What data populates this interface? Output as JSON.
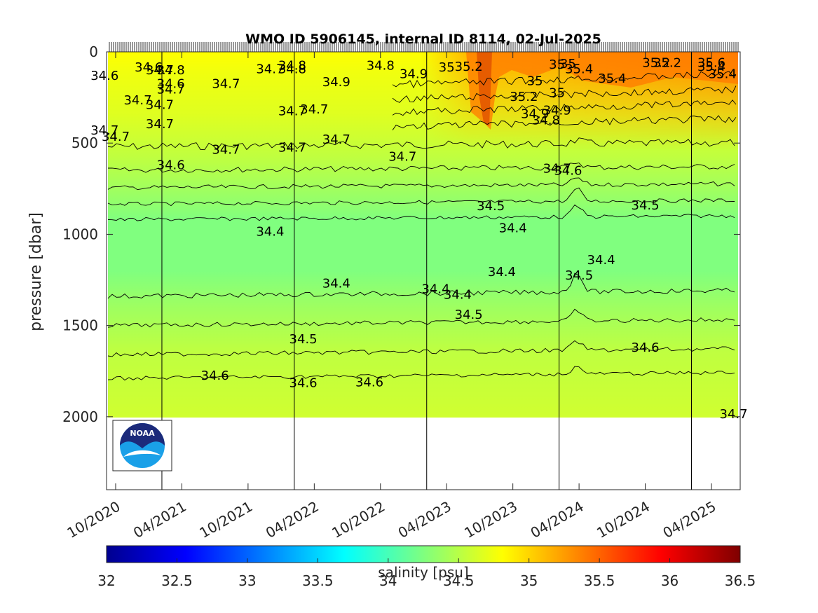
{
  "chart_data": {
    "type": "heatmap",
    "title": "WMO ID 5906145, internal ID 8114, 02-Jul-2025",
    "ylabel": "pressure [dbar]",
    "colorbar_label": "salinity [psu]",
    "x_ticks": [
      "10/2020",
      "04/2021",
      "10/2021",
      "04/2022",
      "10/2022",
      "04/2023",
      "10/2023",
      "04/2024",
      "10/2024",
      "04/2025"
    ],
    "y_ticks": [
      0,
      500,
      1000,
      1500,
      2000
    ],
    "ylim": [
      2400,
      0
    ],
    "y_reversed": true,
    "color_range": [
      32,
      36.5
    ],
    "colorbar_ticks": [
      "32",
      "32.5",
      "33",
      "33.5",
      "34",
      "34.5",
      "35",
      "35.5",
      "36",
      "36.5"
    ],
    "colormap": "jet",
    "contour_levels": [
      34.4,
      34.5,
      34.6,
      34.7,
      34.8,
      34.9,
      35,
      35.2,
      35.4,
      35.6
    ],
    "contour_labels": [
      {
        "text": "34.6",
        "x": "09/2020",
        "y": 130
      },
      {
        "text": "34.6",
        "x": "01/2021",
        "y": 85
      },
      {
        "text": "34.7",
        "x": "02/2021",
        "y": 100
      },
      {
        "text": "34.8",
        "x": "03/2021",
        "y": 100
      },
      {
        "text": "34.6",
        "x": "03/2021",
        "y": 175
      },
      {
        "text": "34.7",
        "x": "03/2021",
        "y": 205
      },
      {
        "text": "34.7",
        "x": "12/2020",
        "y": 265
      },
      {
        "text": "34.7",
        "x": "02/2021",
        "y": 290
      },
      {
        "text": "34.7",
        "x": "09/2020",
        "y": 430
      },
      {
        "text": "34.7",
        "x": "10/2020",
        "y": 465
      },
      {
        "text": "34.7",
        "x": "02/2021",
        "y": 395
      },
      {
        "text": "34.6",
        "x": "03/2021",
        "y": 620
      },
      {
        "text": "34.7",
        "x": "08/2021",
        "y": 175
      },
      {
        "text": "34.7",
        "x": "12/2021",
        "y": 95
      },
      {
        "text": "34.8",
        "x": "02/2022",
        "y": 95
      },
      {
        "text": "34.8",
        "x": "02/2022",
        "y": 75
      },
      {
        "text": "34.9",
        "x": "06/2022",
        "y": 165
      },
      {
        "text": "34.7",
        "x": "08/2021",
        "y": 535
      },
      {
        "text": "34.7",
        "x": "02/2022",
        "y": 525
      },
      {
        "text": "34.7",
        "x": "02/2022",
        "y": 325
      },
      {
        "text": "34.7",
        "x": "04/2022",
        "y": 315
      },
      {
        "text": "34.7",
        "x": "06/2022",
        "y": 480
      },
      {
        "text": "34.4",
        "x": "12/2021",
        "y": 985
      },
      {
        "text": "34.8",
        "x": "10/2022",
        "y": 75
      },
      {
        "text": "34.9",
        "x": "01/2023",
        "y": 120
      },
      {
        "text": "35",
        "x": "04/2023",
        "y": 85
      },
      {
        "text": "35.2",
        "x": "06/2023",
        "y": 80
      },
      {
        "text": "35.2",
        "x": "11/2023",
        "y": 245
      },
      {
        "text": "34.9",
        "x": "12/2023",
        "y": 340
      },
      {
        "text": "34.8",
        "x": "01/2024",
        "y": 375
      },
      {
        "text": "35",
        "x": "12/2023",
        "y": 160
      },
      {
        "text": "35",
        "x": "02/2024",
        "y": 70
      },
      {
        "text": "35",
        "x": "03/2024",
        "y": 65
      },
      {
        "text": "35.4",
        "x": "04/2024",
        "y": 95
      },
      {
        "text": "35",
        "x": "02/2024",
        "y": 225
      },
      {
        "text": "34.9",
        "x": "02/2024",
        "y": 320
      },
      {
        "text": "35.4",
        "x": "07/2024",
        "y": 145
      },
      {
        "text": "35.2",
        "x": "11/2024",
        "y": 60
      },
      {
        "text": "35.2",
        "x": "12/2024",
        "y": 60
      },
      {
        "text": "35.6",
        "x": "04/2025",
        "y": 60
      },
      {
        "text": "35.4",
        "x": "04/2025",
        "y": 80
      },
      {
        "text": "35.4",
        "x": "05/2025",
        "y": 120
      },
      {
        "text": "34.7",
        "x": "12/2022",
        "y": 575
      },
      {
        "text": "34.7",
        "x": "02/2024",
        "y": 640
      },
      {
        "text": "34.6",
        "x": "03/2024",
        "y": 650
      },
      {
        "text": "34.5",
        "x": "08/2023",
        "y": 845
      },
      {
        "text": "34.5",
        "x": "10/2024",
        "y": 840
      },
      {
        "text": "34.4",
        "x": "10/2023",
        "y": 965
      },
      {
        "text": "34.4",
        "x": "06/2022",
        "y": 1270
      },
      {
        "text": "34.4",
        "x": "03/2023",
        "y": 1300
      },
      {
        "text": "34.4",
        "x": "05/2023",
        "y": 1330
      },
      {
        "text": "34.4",
        "x": "09/2023",
        "y": 1205
      },
      {
        "text": "34.4",
        "x": "06/2024",
        "y": 1140
      },
      {
        "text": "34.5",
        "x": "04/2024",
        "y": 1225
      },
      {
        "text": "34.5",
        "x": "06/2023",
        "y": 1440
      },
      {
        "text": "34.5",
        "x": "03/2022",
        "y": 1575
      },
      {
        "text": "34.6",
        "x": "07/2021",
        "y": 1775
      },
      {
        "text": "34.6",
        "x": "03/2022",
        "y": 1815
      },
      {
        "text": "34.6",
        "x": "09/2022",
        "y": 1810
      },
      {
        "text": "34.6",
        "x": "10/2024",
        "y": 1620
      },
      {
        "text": "34.7",
        "x": "06/2025",
        "y": 1985
      }
    ]
  },
  "logo": {
    "text": "NOAA"
  },
  "colors": {
    "background": "#ffffff",
    "deep_field": "#7fff7f",
    "shallow_field": "#ffff00",
    "contour": "#000000"
  }
}
